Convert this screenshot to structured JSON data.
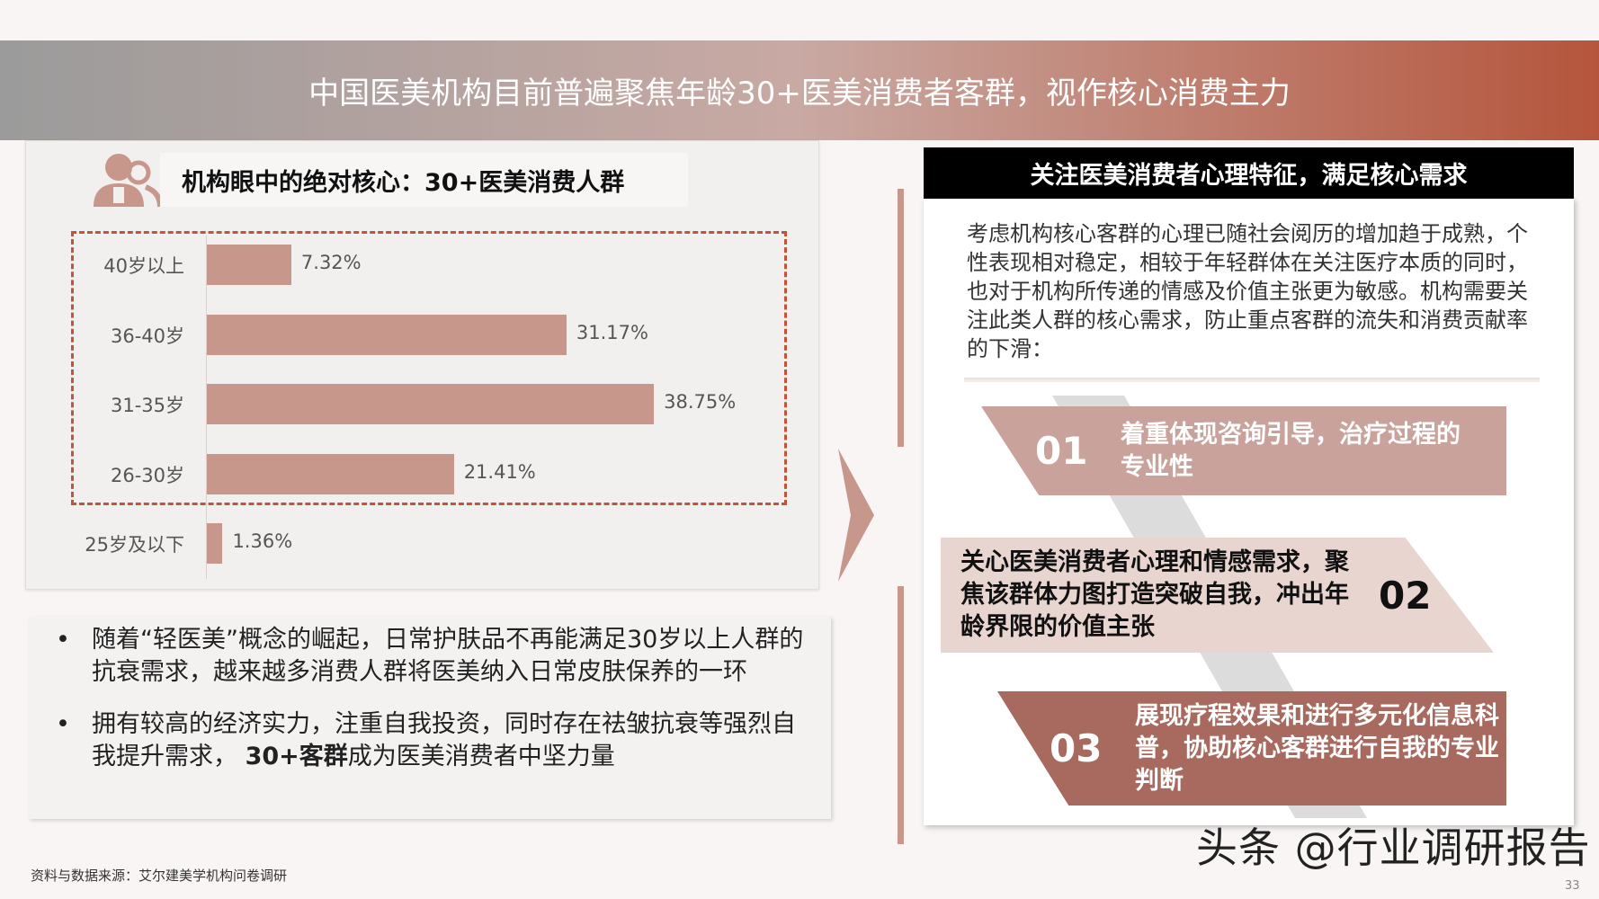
{
  "header": {
    "title": "中国医美机构目前普遍聚焦年龄30+医美消费者客群，视作核心消费主力"
  },
  "left": {
    "icon": "users-icon",
    "title": "机构眼中的绝对核心：30+医美消费人群"
  },
  "chart_data": {
    "type": "bar",
    "orientation": "horizontal",
    "categories": [
      "40岁以上",
      "36-40岁",
      "31-35岁",
      "26-30岁",
      "25岁及以下"
    ],
    "values": [
      7.32,
      31.17,
      38.75,
      21.41,
      1.36
    ],
    "labels": [
      "7.32%",
      "31.17%",
      "38.75%",
      "21.41%",
      "1.36%"
    ],
    "unit": "%",
    "bar_color": "#c8978c",
    "highlight": {
      "categories": [
        "40岁以上",
        "36-40岁",
        "31-35岁",
        "26-30岁"
      ],
      "style": "dashed-box",
      "color": "#c0553c"
    }
  },
  "bullets": [
    {
      "text": "随着“轻医美”概念的崛起，日常护肤品不再能满足30岁以上人群的抗衰需求，越来越多消费人群将医美纳入日常皮肤保养的一环"
    },
    {
      "pre": "拥有较高的经济实力，注重自我投资，同时存在祛皱抗衰等强烈自我提升需求， ",
      "bold": "30+客群",
      "post": "成为医美消费者中坚力量"
    }
  ],
  "source": "资料与数据来源：艾尔建美学机构问卷调研",
  "right": {
    "title": "关注医美消费者心理特征，满足核心需求",
    "paragraph": "考虑机构核心客群的心理已随社会阅历的增加趋于成熟，个性表现相对稳定，相较于年轻群体在关注医疗本质的同时，也对于机构所传递的情感及价值主张更为敏感。机构需要关注此类人群的核心需求，防止重点客群的流失和消费贡献率的下滑：",
    "items": [
      {
        "num": "01",
        "text": "着重体现咨询引导，治疗过程的专业性",
        "color": "#c9a29b"
      },
      {
        "num": "02",
        "text": "关心医美消费者心理和情感需求，聚焦该群体力图打造突破自我，冲出年龄界限的价值主张",
        "color": "#e9d5d0"
      },
      {
        "num": "03",
        "text": "展现疗程效果和进行多元化信息科普，协助核心客群进行自我的专业判断",
        "color": "#a86a5e"
      }
    ]
  },
  "watermark": "头条 @行业调研报告",
  "page_number": "33",
  "colors": {
    "accent": "#b5553c",
    "bar": "#c8978c"
  }
}
